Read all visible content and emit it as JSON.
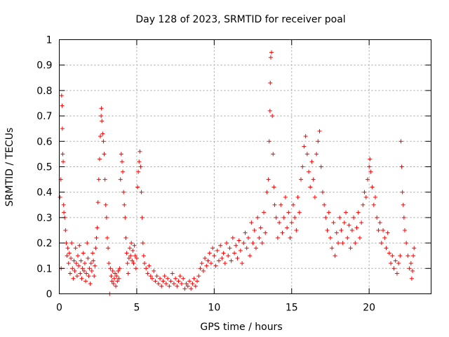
{
  "chart_data": {
    "type": "scatter",
    "title": "Day 128 of 2023, SRMTID for receiver poal",
    "xlabel": "GPS time / hours",
    "ylabel": "SRMTID / TECUs",
    "xlim": [
      0,
      24
    ],
    "ylim": [
      0,
      1
    ],
    "xticks": [
      0,
      5,
      10,
      15,
      20
    ],
    "xtick_labels": [
      "0",
      "5",
      "10",
      "15",
      "20"
    ],
    "yticks": [
      0,
      0.1,
      0.2,
      0.3,
      0.4,
      0.5,
      0.6,
      0.7,
      0.8,
      0.9,
      1
    ],
    "ytick_labels": [
      "0",
      "0.1",
      "0.2",
      "0.3",
      "0.4",
      "0.5",
      "0.6",
      "0.7",
      "0.8",
      "0.9",
      "1"
    ],
    "grid": true,
    "marker": "+",
    "color": "#ff0000",
    "series": [
      {
        "name": "poal",
        "points": [
          [
            0.05,
            0.38
          ],
          [
            0.1,
            0.45
          ],
          [
            0.12,
            0.1
          ],
          [
            0.15,
            0.78
          ],
          [
            0.18,
            0.74
          ],
          [
            0.2,
            0.65
          ],
          [
            0.22,
            0.55
          ],
          [
            0.25,
            0.52
          ],
          [
            0.28,
            0.35
          ],
          [
            0.3,
            0.32
          ],
          [
            0.35,
            0.3
          ],
          [
            0.4,
            0.25
          ],
          [
            0.45,
            0.2
          ],
          [
            0.5,
            0.15
          ],
          [
            0.55,
            0.18
          ],
          [
            0.6,
            0.12
          ],
          [
            0.65,
            0.16
          ],
          [
            0.7,
            0.08
          ],
          [
            0.75,
            0.14
          ],
          [
            0.8,
            0.2
          ],
          [
            0.85,
            0.1
          ],
          [
            0.9,
            0.06
          ],
          [
            0.95,
            0.13
          ],
          [
            1.0,
            0.09
          ],
          [
            1.05,
            0.18
          ],
          [
            1.1,
            0.12
          ],
          [
            1.15,
            0.07
          ],
          [
            1.2,
            0.15
          ],
          [
            1.25,
            0.11
          ],
          [
            1.3,
            0.19
          ],
          [
            1.35,
            0.08
          ],
          [
            1.4,
            0.13
          ],
          [
            1.45,
            0.06
          ],
          [
            1.5,
            0.1
          ],
          [
            1.55,
            0.16
          ],
          [
            1.6,
            0.09
          ],
          [
            1.65,
            0.12
          ],
          [
            1.7,
            0.05
          ],
          [
            1.75,
            0.08
          ],
          [
            1.8,
            0.2
          ],
          [
            1.85,
            0.14
          ],
          [
            1.9,
            0.07
          ],
          [
            1.95,
            0.1
          ],
          [
            2.0,
            0.04
          ],
          [
            2.05,
            0.12
          ],
          [
            2.1,
            0.09
          ],
          [
            2.15,
            0.16
          ],
          [
            2.2,
            0.13
          ],
          [
            2.25,
            0.07
          ],
          [
            2.3,
            0.11
          ],
          [
            2.35,
            0.18
          ],
          [
            2.4,
            0.22
          ],
          [
            2.45,
            0.26
          ],
          [
            2.5,
            0.36
          ],
          [
            2.55,
            0.45
          ],
          [
            2.6,
            0.53
          ],
          [
            2.65,
            0.62
          ],
          [
            2.7,
            0.7
          ],
          [
            2.72,
            0.73
          ],
          [
            2.75,
            0.68
          ],
          [
            2.8,
            0.63
          ],
          [
            2.85,
            0.6
          ],
          [
            2.9,
            0.55
          ],
          [
            2.95,
            0.45
          ],
          [
            3.0,
            0.35
          ],
          [
            3.05,
            0.3
          ],
          [
            3.1,
            0.22
          ],
          [
            3.15,
            0.18
          ],
          [
            3.2,
            0.12
          ],
          [
            3.25,
            0.0
          ],
          [
            3.3,
            0.1
          ],
          [
            3.35,
            0.07
          ],
          [
            3.4,
            0.05
          ],
          [
            3.45,
            0.09
          ],
          [
            3.5,
            0.04
          ],
          [
            3.55,
            0.06
          ],
          [
            3.6,
            0.08
          ],
          [
            3.65,
            0.03
          ],
          [
            3.7,
            0.07
          ],
          [
            3.75,
            0.05
          ],
          [
            3.8,
            0.09
          ],
          [
            3.85,
            0.06
          ],
          [
            3.9,
            0.1
          ],
          [
            3.95,
            0.45
          ],
          [
            4.0,
            0.55
          ],
          [
            4.05,
            0.52
          ],
          [
            4.1,
            0.48
          ],
          [
            4.15,
            0.4
          ],
          [
            4.2,
            0.35
          ],
          [
            4.25,
            0.3
          ],
          [
            4.3,
            0.22
          ],
          [
            4.35,
            0.16
          ],
          [
            4.4,
            0.12
          ],
          [
            4.45,
            0.08
          ],
          [
            4.5,
            0.14
          ],
          [
            4.55,
            0.18
          ],
          [
            4.6,
            0.15
          ],
          [
            4.65,
            0.2
          ],
          [
            4.7,
            0.13
          ],
          [
            4.75,
            0.17
          ],
          [
            4.8,
            0.12
          ],
          [
            4.85,
            0.19
          ],
          [
            4.9,
            0.15
          ],
          [
            4.95,
            0.1
          ],
          [
            5.0,
            0.14
          ],
          [
            5.05,
            0.42
          ],
          [
            5.1,
            0.48
          ],
          [
            5.15,
            0.52
          ],
          [
            5.2,
            0.56
          ],
          [
            5.25,
            0.5
          ],
          [
            5.3,
            0.4
          ],
          [
            5.35,
            0.3
          ],
          [
            5.4,
            0.2
          ],
          [
            5.45,
            0.15
          ],
          [
            5.5,
            0.12
          ],
          [
            5.6,
            0.1
          ],
          [
            5.7,
            0.08
          ],
          [
            5.8,
            0.11
          ],
          [
            5.9,
            0.07
          ],
          [
            6.0,
            0.06
          ],
          [
            6.1,
            0.09
          ],
          [
            6.2,
            0.05
          ],
          [
            6.3,
            0.07
          ],
          [
            6.4,
            0.04
          ],
          [
            6.5,
            0.06
          ],
          [
            6.6,
            0.03
          ],
          [
            6.7,
            0.05
          ],
          [
            6.8,
            0.07
          ],
          [
            6.9,
            0.04
          ],
          [
            7.0,
            0.06
          ],
          [
            7.1,
            0.03
          ],
          [
            7.2,
            0.05
          ],
          [
            7.3,
            0.08
          ],
          [
            7.4,
            0.04
          ],
          [
            7.5,
            0.06
          ],
          [
            7.6,
            0.03
          ],
          [
            7.7,
            0.05
          ],
          [
            7.8,
            0.07
          ],
          [
            7.9,
            0.04
          ],
          [
            8.0,
            0.06
          ],
          [
            8.1,
            0.02
          ],
          [
            8.2,
            0.04
          ],
          [
            8.3,
            0.03
          ],
          [
            8.4,
            0.05
          ],
          [
            8.5,
            0.02
          ],
          [
            8.6,
            0.04
          ],
          [
            8.7,
            0.06
          ],
          [
            8.8,
            0.03
          ],
          [
            8.9,
            0.05
          ],
          [
            9.0,
            0.07
          ],
          [
            9.1,
            0.1
          ],
          [
            9.2,
            0.12
          ],
          [
            9.3,
            0.09
          ],
          [
            9.4,
            0.14
          ],
          [
            9.5,
            0.11
          ],
          [
            9.6,
            0.13
          ],
          [
            9.7,
            0.16
          ],
          [
            9.8,
            0.12
          ],
          [
            9.9,
            0.18
          ],
          [
            10.0,
            0.15
          ],
          [
            10.1,
            0.11
          ],
          [
            10.2,
            0.17
          ],
          [
            10.3,
            0.13
          ],
          [
            10.4,
            0.19
          ],
          [
            10.5,
            0.14
          ],
          [
            10.6,
            0.16
          ],
          [
            10.7,
            0.12
          ],
          [
            10.8,
            0.2
          ],
          [
            10.9,
            0.15
          ],
          [
            11.0,
            0.18
          ],
          [
            11.1,
            0.13
          ],
          [
            11.2,
            0.22
          ],
          [
            11.3,
            0.16
          ],
          [
            11.4,
            0.19
          ],
          [
            11.5,
            0.14
          ],
          [
            11.6,
            0.21
          ],
          [
            11.7,
            0.17
          ],
          [
            11.8,
            0.12
          ],
          [
            11.9,
            0.2
          ],
          [
            12.0,
            0.24
          ],
          [
            12.1,
            0.18
          ],
          [
            12.2,
            0.22
          ],
          [
            12.3,
            0.15
          ],
          [
            12.4,
            0.28
          ],
          [
            12.5,
            0.2
          ],
          [
            12.6,
            0.25
          ],
          [
            12.7,
            0.18
          ],
          [
            12.8,
            0.3
          ],
          [
            12.9,
            0.22
          ],
          [
            13.0,
            0.26
          ],
          [
            13.1,
            0.2
          ],
          [
            13.2,
            0.32
          ],
          [
            13.3,
            0.24
          ],
          [
            13.4,
            0.4
          ],
          [
            13.5,
            0.45
          ],
          [
            13.55,
            0.6
          ],
          [
            13.6,
            0.72
          ],
          [
            13.62,
            0.83
          ],
          [
            13.65,
            0.93
          ],
          [
            13.7,
            0.95
          ],
          [
            13.75,
            0.7
          ],
          [
            13.8,
            0.55
          ],
          [
            13.85,
            0.42
          ],
          [
            13.9,
            0.35
          ],
          [
            14.0,
            0.3
          ],
          [
            14.1,
            0.22
          ],
          [
            14.2,
            0.28
          ],
          [
            14.3,
            0.35
          ],
          [
            14.4,
            0.24
          ],
          [
            14.5,
            0.3
          ],
          [
            14.6,
            0.38
          ],
          [
            14.7,
            0.26
          ],
          [
            14.8,
            0.32
          ],
          [
            14.9,
            0.22
          ],
          [
            15.0,
            0.28
          ],
          [
            15.1,
            0.35
          ],
          [
            15.2,
            0.3
          ],
          [
            15.3,
            0.25
          ],
          [
            15.4,
            0.38
          ],
          [
            15.5,
            0.32
          ],
          [
            15.6,
            0.45
          ],
          [
            15.7,
            0.5
          ],
          [
            15.8,
            0.58
          ],
          [
            15.9,
            0.62
          ],
          [
            16.0,
            0.55
          ],
          [
            16.1,
            0.48
          ],
          [
            16.2,
            0.42
          ],
          [
            16.3,
            0.52
          ],
          [
            16.4,
            0.45
          ],
          [
            16.5,
            0.38
          ],
          [
            16.6,
            0.55
          ],
          [
            16.7,
            0.6
          ],
          [
            16.8,
            0.64
          ],
          [
            16.9,
            0.5
          ],
          [
            17.0,
            0.4
          ],
          [
            17.1,
            0.35
          ],
          [
            17.2,
            0.3
          ],
          [
            17.3,
            0.25
          ],
          [
            17.4,
            0.32
          ],
          [
            17.5,
            0.22
          ],
          [
            17.6,
            0.18
          ],
          [
            17.7,
            0.28
          ],
          [
            17.8,
            0.15
          ],
          [
            17.9,
            0.24
          ],
          [
            18.0,
            0.2
          ],
          [
            18.1,
            0.3
          ],
          [
            18.2,
            0.25
          ],
          [
            18.3,
            0.2
          ],
          [
            18.4,
            0.28
          ],
          [
            18.5,
            0.32
          ],
          [
            18.6,
            0.22
          ],
          [
            18.7,
            0.27
          ],
          [
            18.8,
            0.18
          ],
          [
            18.9,
            0.25
          ],
          [
            19.0,
            0.3
          ],
          [
            19.1,
            0.2
          ],
          [
            19.2,
            0.26
          ],
          [
            19.3,
            0.32
          ],
          [
            19.4,
            0.22
          ],
          [
            19.5,
            0.28
          ],
          [
            19.6,
            0.35
          ],
          [
            19.7,
            0.4
          ],
          [
            19.8,
            0.38
          ],
          [
            19.9,
            0.45
          ],
          [
            20.0,
            0.5
          ],
          [
            20.05,
            0.53
          ],
          [
            20.1,
            0.48
          ],
          [
            20.2,
            0.42
          ],
          [
            20.3,
            0.35
          ],
          [
            20.4,
            0.38
          ],
          [
            20.5,
            0.3
          ],
          [
            20.6,
            0.25
          ],
          [
            20.7,
            0.28
          ],
          [
            20.8,
            0.2
          ],
          [
            20.9,
            0.25
          ],
          [
            21.0,
            0.22
          ],
          [
            21.1,
            0.18
          ],
          [
            21.2,
            0.24
          ],
          [
            21.3,
            0.16
          ],
          [
            21.4,
            0.12
          ],
          [
            21.5,
            0.15
          ],
          [
            21.6,
            0.1
          ],
          [
            21.7,
            0.13
          ],
          [
            21.8,
            0.08
          ],
          [
            21.9,
            0.12
          ],
          [
            22.0,
            0.15
          ],
          [
            22.05,
            0.6
          ],
          [
            22.1,
            0.5
          ],
          [
            22.15,
            0.4
          ],
          [
            22.2,
            0.35
          ],
          [
            22.25,
            0.3
          ],
          [
            22.3,
            0.25
          ],
          [
            22.4,
            0.2
          ],
          [
            22.5,
            0.15
          ],
          [
            22.6,
            0.1
          ],
          [
            22.7,
            0.12
          ],
          [
            22.75,
            0.06
          ],
          [
            22.8,
            0.09
          ],
          [
            22.85,
            0.15
          ],
          [
            22.9,
            0.18
          ]
        ]
      }
    ]
  }
}
